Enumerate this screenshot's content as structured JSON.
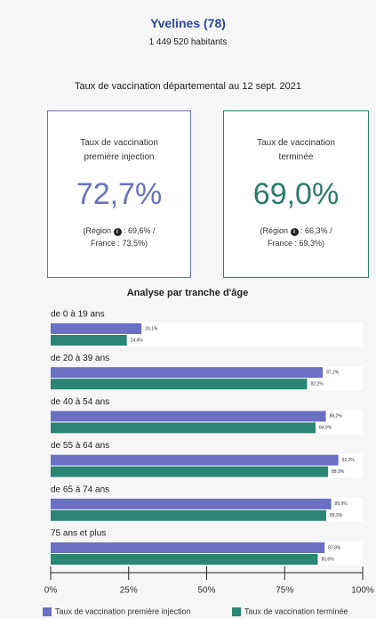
{
  "header": {
    "title": "Yvelines (78)",
    "population": "1 449 520 habitants",
    "subtitle": "Taux de vaccination départemental au 12 sept. 2021"
  },
  "cards": [
    {
      "label": "Taux de vaccination première injection",
      "value": "72,7%",
      "note_start": "(Région",
      "note_end": ": 69,6% / France : 73,5%)"
    },
    {
      "label": "Taux de vaccination terminée",
      "value": "69,0%",
      "note_start": "(Région",
      "note_end": ": 66,3% / France : 69,3%)"
    }
  ],
  "chart_data": {
    "type": "bar",
    "orientation": "horizontal",
    "title": "Analyse par tranche d'âge",
    "categories": [
      "de 0 à 19 ans",
      "de 20 à 39 ans",
      "de 40 à 54 ans",
      "de 55 à 64 ans",
      "de 65 à 74 ans",
      "75 ans et plus"
    ],
    "series": [
      {
        "name": "Taux de vaccination première injection",
        "color": "#6a6fc4",
        "values": [
          29.1,
          87.2,
          88.2,
          92.2,
          89.9,
          87.8
        ],
        "value_labels": [
          "29,1%",
          "87,2%",
          "88,2%",
          "92,2%",
          "89,9%",
          "87,8%"
        ]
      },
      {
        "name": "Taux de vaccination terminée",
        "color": "#2b8573",
        "values": [
          24.4,
          82.2,
          84.9,
          88.9,
          88.3,
          85.6
        ],
        "value_labels": [
          "24,4%",
          "82,2%",
          "84,9%",
          "88,9%",
          "88,3%",
          "85,6%"
        ]
      }
    ],
    "xlim": [
      0,
      100
    ],
    "xticks": [
      {
        "value": 0,
        "label": "0%"
      },
      {
        "value": 25,
        "label": "25%"
      },
      {
        "value": 50,
        "label": "50%"
      },
      {
        "value": 75,
        "label": "75%"
      },
      {
        "value": 100,
        "label": "100%"
      }
    ]
  }
}
